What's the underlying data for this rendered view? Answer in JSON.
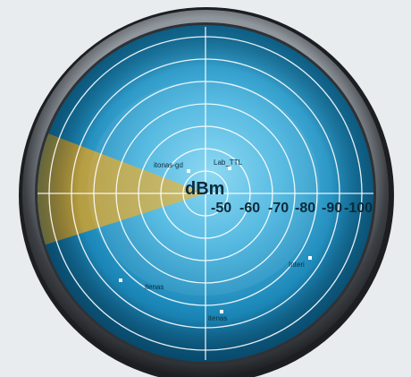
{
  "radar": {
    "unit": "dBm",
    "scale_labels": [
      "-50",
      "-60",
      "-70",
      "-80",
      "-90",
      "-100"
    ],
    "networks": [
      {
        "label": "itonas-gd",
        "kind": "access-point"
      },
      {
        "label": "Lab_TTL",
        "kind": "access-point"
      },
      {
        "label": "Interi",
        "kind": "access-point"
      },
      {
        "label": "itenas",
        "kind": "access-point"
      },
      {
        "label": "itenas",
        "kind": "access-point"
      }
    ],
    "sweep": {
      "icon": "radar-sweep-beam"
    }
  },
  "colors": {
    "background": "#e9ecee",
    "bezel_dark": "#2b2e31",
    "bezel_light": "#a7adb2",
    "screen_center": "#7fd0ee",
    "screen_edge": "#0b5f88",
    "grid_line": "#ffffff",
    "sweep": "#d9a626"
  }
}
